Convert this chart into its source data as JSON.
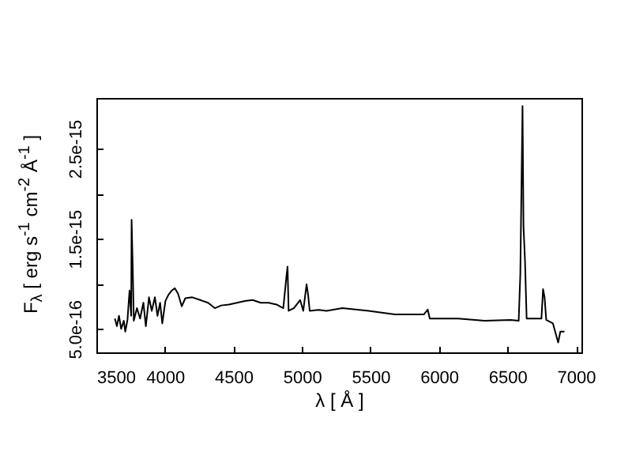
{
  "chart_data": {
    "type": "line",
    "xlabel": "λ [ Å ]",
    "ylabel": "F$_{λ}$ [ erg s$^{-1}$ cm$^{-2}$ Å$^{-1}$ ]",
    "xlim": [
      3500,
      7040
    ],
    "xticks": [
      3500,
      4000,
      4500,
      5000,
      5500,
      6000,
      6500,
      7000
    ],
    "ylim": [
      2.4e-16,
      3.06e-15
    ],
    "yticks": [
      {
        "value": 5e-16,
        "label": "5.0e-16"
      },
      {
        "value": 1e-15,
        "label": null
      },
      {
        "value": 1.5e-15,
        "label": "1.5e-15"
      },
      {
        "value": 2e-15,
        "label": null
      },
      {
        "value": 2.5e-15,
        "label": "2.5e-15"
      }
    ],
    "grid": false,
    "marker": "none",
    "line_style": "solid",
    "series": [
      {
        "color": "#000000",
        "x": [
          3635,
          3650,
          3665,
          3681,
          3700,
          3711,
          3727,
          3742,
          3754,
          3757,
          3765,
          3773,
          3796,
          3819,
          3843,
          3861,
          3884,
          3904,
          3927,
          3946,
          3965,
          3981,
          4004,
          4027,
          4050,
          4073,
          4096,
          4123,
          4149,
          4200,
          4258,
          4315,
          4365,
          4411,
          4468,
          4526,
          4584,
          4641,
          4699,
          4757,
          4814,
          4864,
          4887,
          4895,
          4903,
          4941,
          4987,
          5010,
          5034,
          5045,
          5057,
          5122,
          5180,
          5295,
          5487,
          5679,
          5890,
          5918,
          5933,
          6140,
          6333,
          6524,
          6582,
          6594,
          6610,
          6617,
          6628,
          6640,
          6697,
          6748,
          6760,
          6771,
          6783,
          6832,
          6870,
          6886,
          6916
        ],
        "values": [
          6.15e-16,
          5.3e-16,
          6.45e-16,
          5e-16,
          5.9e-16,
          4.7e-16,
          6e-16,
          9.25e-16,
          6.45e-16,
          1.71e-15,
          1.2e-15,
          5.9e-16,
          7.3e-16,
          6.15e-16,
          7.9e-16,
          5.3e-16,
          8.5e-16,
          7e-16,
          8.5e-16,
          6.45e-16,
          7.9e-16,
          5.6e-16,
          8.1e-16,
          8.8e-16,
          9.25e-16,
          9.5e-16,
          8.9e-16,
          7.5e-16,
          8.4e-16,
          8.5e-16,
          8.2e-16,
          7.9e-16,
          7.3e-16,
          7.6e-16,
          7.7e-16,
          7.9e-16,
          8.1e-16,
          8.2e-16,
          7.9e-16,
          7.9e-16,
          7.7e-16,
          7.3e-16,
          1.08e-15,
          1.19e-15,
          7e-16,
          7.3e-16,
          8.2e-16,
          7e-16,
          9.95e-16,
          8.8e-16,
          7e-16,
          7.1e-16,
          7e-16,
          7.3e-16,
          7e-16,
          6.6e-16,
          6.6e-16,
          7.15e-16,
          6.15e-16,
          6.15e-16,
          5.9e-16,
          6e-16,
          5.9e-16,
          1.11e-15,
          2.97e-15,
          1.64e-15,
          1.26e-15,
          6.15e-16,
          6.15e-16,
          6.15e-16,
          9.4e-16,
          8.5e-16,
          6e-16,
          5.6e-16,
          3.5e-16,
          4.7e-16,
          4.7e-16
        ]
      }
    ]
  }
}
